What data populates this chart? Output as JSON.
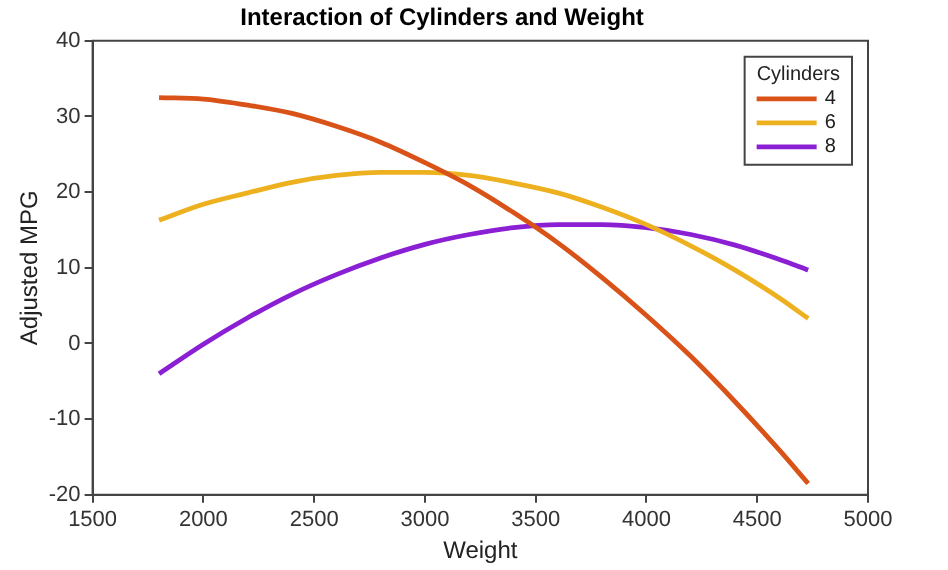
{
  "chart_data": {
    "type": "line",
    "title": "Interaction of Cylinders and Weight",
    "xlabel": "Weight",
    "ylabel": "Adjusted MPG",
    "legend_title": "Cylinders",
    "x": [
      1800,
      2000,
      2200,
      2400,
      2600,
      2800,
      3000,
      3200,
      3400,
      3600,
      3800,
      4000,
      4200,
      4400,
      4600,
      4730
    ],
    "series": [
      {
        "name": "4",
        "color": "#d95319",
        "values": [
          32.5,
          32.3,
          31.5,
          30.4,
          28.7,
          26.6,
          23.9,
          20.9,
          17.3,
          13.3,
          8.7,
          3.7,
          -1.7,
          -7.7,
          -14.1,
          -18.5
        ]
      },
      {
        "name": "6",
        "color": "#edb120",
        "values": [
          16.3,
          18.4,
          19.9,
          21.3,
          22.2,
          22.6,
          22.6,
          22.2,
          21.2,
          19.9,
          18.0,
          15.7,
          12.9,
          9.7,
          6.0,
          3.3
        ]
      },
      {
        "name": "8",
        "color": "#8b1fd4",
        "values": [
          -4.0,
          -0.1,
          3.4,
          6.5,
          9.1,
          11.3,
          13.1,
          14.4,
          15.3,
          15.7,
          15.7,
          15.3,
          14.4,
          13.0,
          11.1,
          9.7
        ]
      }
    ],
    "xlim": [
      1500,
      5000
    ],
    "xticks": [
      1500,
      2000,
      2500,
      3000,
      3500,
      4000,
      4500,
      5000
    ],
    "ylim": [
      -20,
      40
    ],
    "yticks": [
      -20,
      -10,
      0,
      10,
      20,
      30,
      40
    ],
    "grid": false,
    "legend": "top right",
    "marker": "none",
    "line_style": "solid"
  }
}
